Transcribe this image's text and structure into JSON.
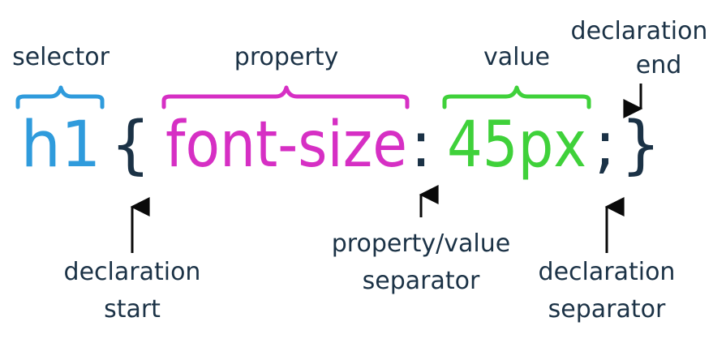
{
  "colors": {
    "selector": "#2f9bdc",
    "property": "#d62fc4",
    "value": "#3fd13a",
    "punctuation": "#1b3246",
    "labels": "#1b3246",
    "arrows": "#0a0a0a"
  },
  "code": {
    "selector": "h1",
    "open_brace": "{",
    "property": "font-size",
    "colon": ":",
    "value": "45px",
    "semicolon": ";",
    "close_brace": "}"
  },
  "labels": {
    "selector": "selector",
    "property": "property",
    "value": "value",
    "declaration_end_line1": "declaration",
    "declaration_end_line2": "end",
    "declaration_start_line1": "declaration",
    "declaration_start_line2": "start",
    "separator_line1": "property/value",
    "separator_line2": "separator",
    "declaration_separator_line1": "declaration",
    "declaration_separator_line2": "separator"
  }
}
